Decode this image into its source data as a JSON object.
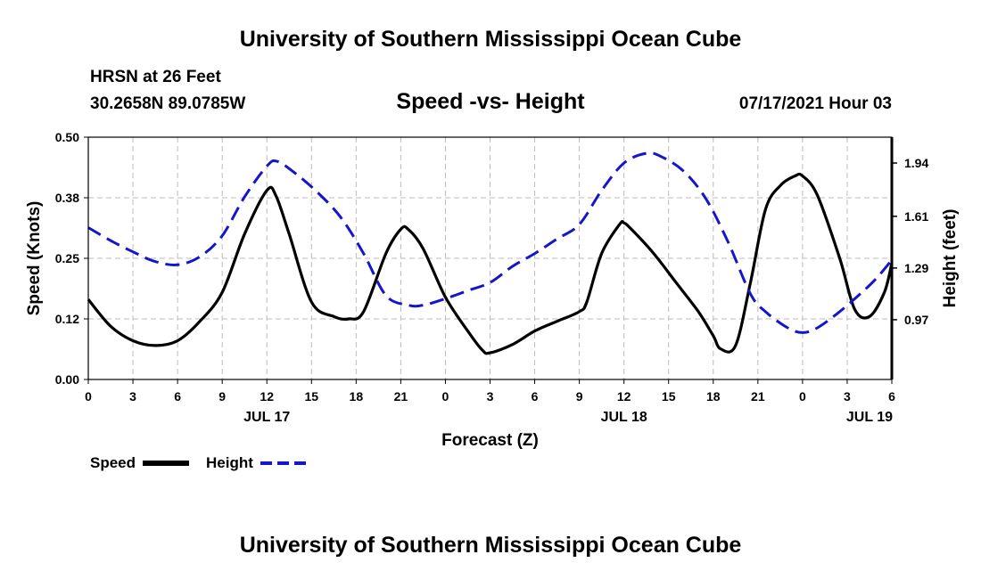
{
  "header": {
    "title": "University of Southern Mississippi Ocean Cube",
    "station": "HRSN at 26 Feet",
    "coords": "30.2658N  89.0785W",
    "subtitle": "Speed -vs- Height",
    "datetime": "07/17/2021 Hour 03"
  },
  "footer": {
    "title": "University of Southern Mississippi Ocean Cube"
  },
  "legend": {
    "speed_label": "Speed",
    "height_label": "Height"
  },
  "colors": {
    "speed": "#000000",
    "height": "#1515cc",
    "grid": "#bbbbbb"
  },
  "chart_data": {
    "type": "line",
    "title": "Speed -vs- Height",
    "xlabel": "Forecast (Z)",
    "ylabel": "Speed (Knots)",
    "y2label": "Height (feet)",
    "xlim": [
      0,
      54
    ],
    "ylim": [
      0,
      0.5
    ],
    "y2lim": [
      0.6,
      2.1
    ],
    "x_ticks": [
      0,
      3,
      6,
      9,
      12,
      15,
      18,
      21,
      24,
      27,
      30,
      33,
      36,
      39,
      42,
      45,
      48,
      51,
      54
    ],
    "x_tick_labels": [
      "0",
      "3",
      "6",
      "9",
      "12",
      "15",
      "18",
      "21",
      "0",
      "3",
      "6",
      "9",
      "12",
      "15",
      "18",
      "21",
      "0",
      "3",
      "6"
    ],
    "y_ticks": [
      0,
      0.125,
      0.25,
      0.375,
      0.5
    ],
    "y_tick_labels": [
      "0.00",
      "0.12",
      "0.25",
      "0.38",
      "0.50"
    ],
    "y2_ticks": [
      0.97,
      1.29,
      1.61,
      1.94
    ],
    "y2_tick_labels": [
      "0.97",
      "1.29",
      "1.61",
      "1.94"
    ],
    "date_labels": [
      {
        "x": 12,
        "label": "JUL 17"
      },
      {
        "x": 36,
        "label": "JUL 18"
      },
      {
        "x": 52.5,
        "label": "JUL 19"
      }
    ],
    "grid": true,
    "series": [
      {
        "name": "Speed",
        "axis": "left",
        "style": "solid",
        "x": [
          0,
          1.5,
          3,
          4.5,
          6,
          7.5,
          9,
          10.5,
          12,
          12.6,
          13.5,
          15,
          16.5,
          17.5,
          18.5,
          20,
          21,
          21.5,
          22.5,
          24,
          25.5,
          26.5,
          27,
          28.5,
          30,
          31.5,
          33,
          33.5,
          34.5,
          35.7,
          36,
          36.5,
          38,
          39.5,
          41,
          42,
          42.5,
          43.5,
          44.5,
          45.5,
          46.5,
          47.5,
          48,
          49,
          50.5,
          51.5,
          52.5,
          53.5,
          54
        ],
        "values": [
          0.165,
          0.11,
          0.08,
          0.07,
          0.08,
          0.12,
          0.18,
          0.3,
          0.39,
          0.38,
          0.3,
          0.16,
          0.13,
          0.125,
          0.14,
          0.26,
          0.31,
          0.31,
          0.27,
          0.17,
          0.1,
          0.06,
          0.055,
          0.072,
          0.1,
          0.12,
          0.14,
          0.16,
          0.26,
          0.32,
          0.323,
          0.31,
          0.26,
          0.2,
          0.14,
          0.09,
          0.063,
          0.07,
          0.2,
          0.35,
          0.4,
          0.42,
          0.42,
          0.38,
          0.25,
          0.145,
          0.13,
          0.18,
          0.24
        ]
      },
      {
        "name": "Height",
        "axis": "right",
        "style": "dashed",
        "x": [
          0,
          1.5,
          3,
          4.5,
          6,
          7.5,
          9,
          10.5,
          12,
          12.7,
          14,
          15.5,
          17,
          18.5,
          20,
          21.5,
          22.5,
          24,
          25.5,
          27,
          28.5,
          30,
          31.5,
          33,
          34.5,
          36,
          37.5,
          38.5,
          40,
          41.5,
          43,
          44.5,
          45.5,
          47,
          48,
          49,
          50.5,
          52,
          53,
          54
        ],
        "values": [
          1.54,
          1.46,
          1.39,
          1.33,
          1.31,
          1.36,
          1.49,
          1.73,
          1.92,
          1.95,
          1.87,
          1.75,
          1.6,
          1.38,
          1.12,
          1.06,
          1.06,
          1.1,
          1.15,
          1.2,
          1.3,
          1.38,
          1.47,
          1.56,
          1.77,
          1.94,
          2.0,
          1.98,
          1.89,
          1.72,
          1.45,
          1.13,
          1.02,
          0.92,
          0.89,
          0.92,
          1.02,
          1.14,
          1.23,
          1.34
        ]
      }
    ]
  }
}
